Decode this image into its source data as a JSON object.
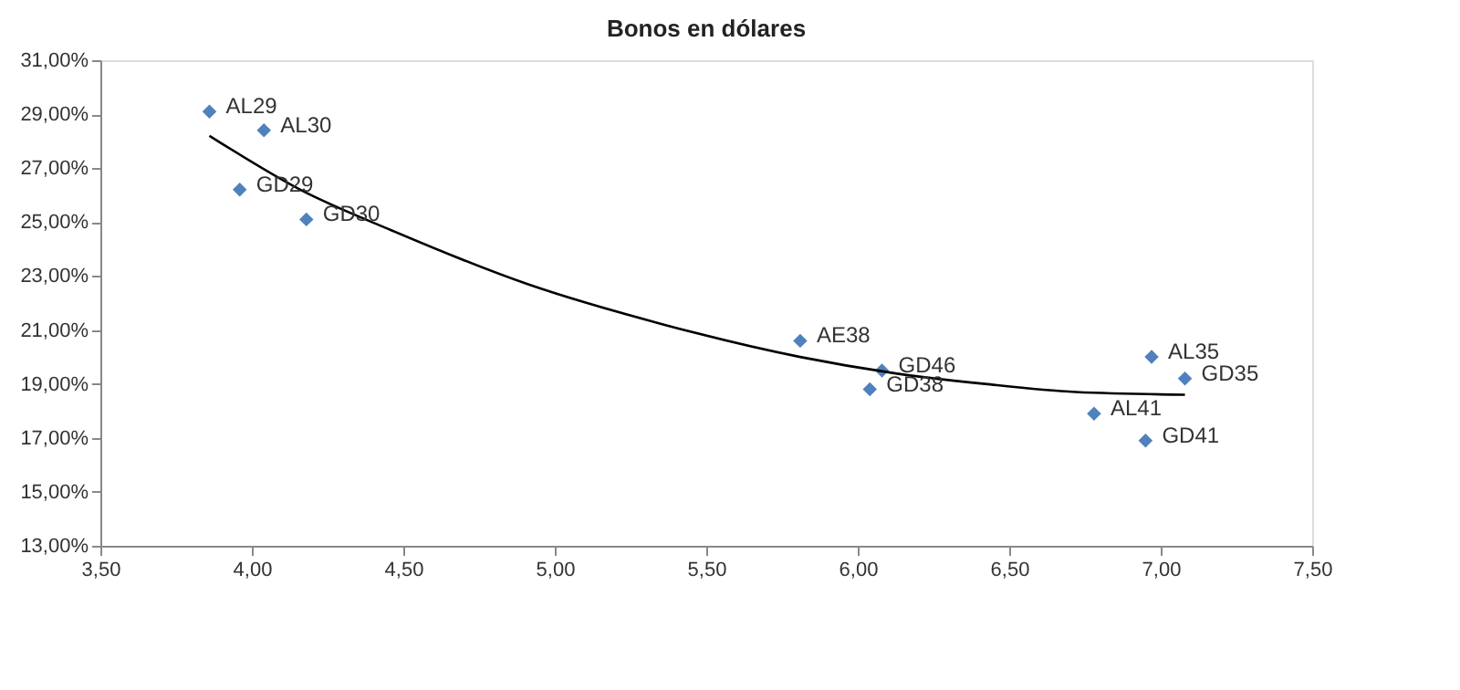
{
  "chart_data": {
    "type": "scatter",
    "title": "Bonos en dólares",
    "xlim": [
      3.5,
      7.5
    ],
    "ylim": [
      13,
      31
    ],
    "xticks": [
      {
        "value": 3.5,
        "label": "3,50"
      },
      {
        "value": 4,
        "label": "4,00"
      },
      {
        "value": 4.5,
        "label": "4,50"
      },
      {
        "value": 5,
        "label": "5,00"
      },
      {
        "value": 5.5,
        "label": "5,50"
      },
      {
        "value": 6,
        "label": "6,00"
      },
      {
        "value": 6.5,
        "label": "6,50"
      },
      {
        "value": 7,
        "label": "7,00"
      },
      {
        "value": 7.5,
        "label": "7,50"
      }
    ],
    "yticks": [
      {
        "value": 13,
        "label": "13,00%"
      },
      {
        "value": 15,
        "label": "15,00%"
      },
      {
        "value": 17,
        "label": "17,00%"
      },
      {
        "value": 19,
        "label": "19,00%"
      },
      {
        "value": 21,
        "label": "21,00%"
      },
      {
        "value": 23,
        "label": "23,00%"
      },
      {
        "value": 25,
        "label": "25,00%"
      },
      {
        "value": 27,
        "label": "27,00%"
      },
      {
        "value": 29,
        "label": "29,00%"
      },
      {
        "value": 31,
        "label": "31,00%"
      }
    ],
    "grid": false,
    "series": [
      {
        "marker": "diamond",
        "color": "#4f81bd",
        "x": [
          3.86,
          4.04,
          3.96,
          4.18,
          5.81,
          6.08,
          6.04,
          6.97,
          7.08,
          6.78,
          6.95
        ],
        "values": [
          29.1,
          28.4,
          26.2,
          25.1,
          20.6,
          19.5,
          18.8,
          20.0,
          19.2,
          17.9,
          16.9
        ]
      },
      {
        "type": "line",
        "marker": "none",
        "color": "#000000",
        "x": [
          3.86,
          4.16,
          4.46,
          4.91,
          5.36,
          5.81,
          6.12,
          6.42,
          6.72,
          7.08
        ],
        "values": [
          28.2,
          26.2,
          24.7,
          22.7,
          21.2,
          20.0,
          19.4,
          19.0,
          18.7,
          18.6
        ]
      }
    ],
    "annotations": [
      {
        "text": "AL29",
        "x": 3.86,
        "y": 29.1
      },
      {
        "text": "AL30",
        "x": 4.04,
        "y": 28.4
      },
      {
        "text": "GD29",
        "x": 3.96,
        "y": 26.2
      },
      {
        "text": "GD30",
        "x": 4.18,
        "y": 25.1
      },
      {
        "text": "AE38",
        "x": 5.81,
        "y": 20.6
      },
      {
        "text": "GD46",
        "x": 6.08,
        "y": 19.5
      },
      {
        "text": "GD38",
        "x": 6.04,
        "y": 18.8
      },
      {
        "text": "AL35",
        "x": 6.97,
        "y": 20.0
      },
      {
        "text": "GD35",
        "x": 7.08,
        "y": 19.2
      },
      {
        "text": "AL41",
        "x": 6.78,
        "y": 17.9
      },
      {
        "text": "GD41",
        "x": 6.95,
        "y": 16.9
      }
    ]
  }
}
